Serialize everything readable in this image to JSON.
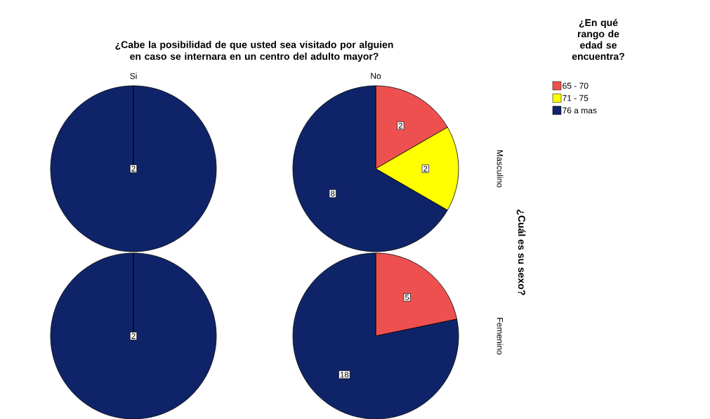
{
  "chart_data": [
    {
      "type": "pie",
      "title": "¿Cabe la posibilidad de que usted sea visitado por alguien en caso se internara en un centro del adulto mayor?",
      "subtitle": "Si",
      "values": [
        0,
        0,
        2
      ],
      "colors": [
        "#ee5050",
        "#ffff00",
        "#0f2468"
      ],
      "value_labels": [
        null,
        null,
        "2"
      ]
    },
    {
      "type": "pie",
      "subtitle": "No",
      "y2label": "Masculino",
      "annotations": [
        "¿Cuál es su sexo?"
      ],
      "legend": "right",
      "legend_title": "¿En qué rango de edad se encuentra?",
      "categories": [
        "65 - 70",
        "71 - 75",
        "76 a mas"
      ],
      "values": [
        2,
        2,
        8
      ],
      "colors": [
        "#ee5050",
        "#ffff00",
        "#0f2468"
      ],
      "value_labels": [
        "2",
        "2",
        "8"
      ]
    },
    {
      "type": "pie",
      "values": [
        0,
        0,
        2
      ],
      "colors": [
        "#ee5050",
        "#ffff00",
        "#0f2468"
      ],
      "value_labels": [
        null,
        null,
        "2"
      ]
    },
    {
      "type": "pie",
      "y2label": "Femenino",
      "values": [
        5,
        0,
        18
      ],
      "colors": [
        "#ee5050",
        "#ffff00",
        "#0f2468"
      ],
      "value_labels": [
        "5",
        null,
        "18"
      ]
    }
  ]
}
